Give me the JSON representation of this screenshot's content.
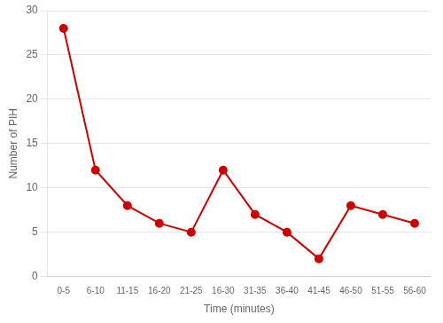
{
  "chart_data": {
    "type": "line",
    "categories": [
      "0-5",
      "6-10",
      "11-15",
      "16-20",
      "21-25",
      "16-30",
      "31-35",
      "36-40",
      "41-45",
      "46-50",
      "51-55",
      "56-60"
    ],
    "values": [
      28,
      12,
      8,
      6,
      5,
      12,
      7,
      5,
      2,
      8,
      7,
      6
    ],
    "color": "#cc0000",
    "marker": "circle",
    "xlabel": "Time (minutes)",
    "ylabel": "Number of PIH",
    "ylim": [
      0,
      30
    ],
    "yticks": [
      0,
      5,
      10,
      15,
      20,
      25,
      30
    ],
    "grid": true
  }
}
